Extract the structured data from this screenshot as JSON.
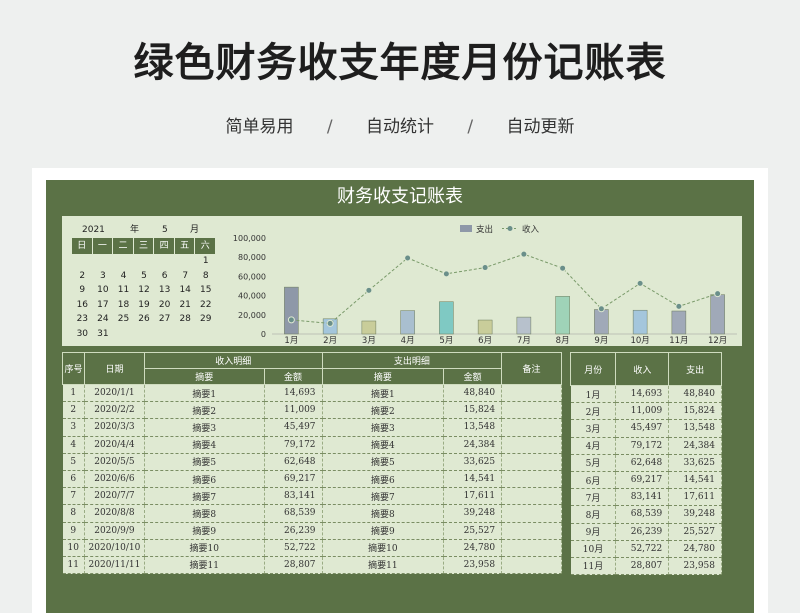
{
  "header": {
    "title": "绿色财务收支年度月份记账表",
    "features": [
      "简单易用",
      "自动统计",
      "自动更新"
    ],
    "separator": "/"
  },
  "sheet": {
    "title": "财务收支记账表"
  },
  "calendar": {
    "year": "2021",
    "year_label": "年",
    "month": "5",
    "month_label": "月",
    "weekdays": [
      "日",
      "一",
      "二",
      "三",
      "四",
      "五",
      "六"
    ],
    "weeks": [
      [
        "",
        "",
        "",
        "",
        "",
        "",
        "1"
      ],
      [
        "2",
        "3",
        "4",
        "5",
        "6",
        "7",
        "8"
      ],
      [
        "9",
        "10",
        "11",
        "12",
        "13",
        "14",
        "15"
      ],
      [
        "16",
        "17",
        "18",
        "19",
        "20",
        "21",
        "22"
      ],
      [
        "23",
        "24",
        "25",
        "26",
        "27",
        "28",
        "29"
      ],
      [
        "30",
        "31",
        "",
        "",
        "",
        "",
        ""
      ]
    ]
  },
  "chart_data": {
    "type": "bar",
    "categories": [
      "1月",
      "2月",
      "3月",
      "4月",
      "5月",
      "6月",
      "7月",
      "8月",
      "9月",
      "10月",
      "11月",
      "12月"
    ],
    "y_ticks": [
      "0",
      "20,000",
      "40,000",
      "60,000",
      "80,000",
      "100,000"
    ],
    "ylim": [
      0,
      100000
    ],
    "legend_position": "top-center",
    "series": [
      {
        "name": "支出",
        "type": "bar",
        "values": [
          48840,
          15824,
          13548,
          24384,
          33625,
          14541,
          17611,
          39248,
          25527,
          24780,
          23958,
          41000
        ]
      },
      {
        "name": "收入",
        "type": "line",
        "values": [
          14693,
          11009,
          45497,
          79172,
          62648,
          69217,
          83141,
          68539,
          26239,
          52722,
          28807,
          42000
        ]
      }
    ],
    "bar_colors": [
      "#8e98a8",
      "#a4c6dc",
      "#c9cd9a",
      "#a9bfcf",
      "#7fc9c3",
      "#c9cd9a",
      "#b7c1cc",
      "#9fd3b8",
      "#a0a9b8",
      "#a4c6dc",
      "#a0a9b8",
      "#a0a9b8"
    ],
    "line_color": "#7a9a6a"
  },
  "ledger": {
    "headers": {
      "index": "序号",
      "date": "日期",
      "income_group": "收入明细",
      "expense_group": "支出明细",
      "summary": "摘要",
      "amount": "金额",
      "remark": "备注"
    },
    "rows": [
      {
        "index": "1",
        "date": "2020/1/1",
        "in_summary": "摘要1",
        "in_amount": "14,693",
        "out_summary": "摘要1",
        "out_amount": "48,840",
        "remark": ""
      },
      {
        "index": "2",
        "date": "2020/2/2",
        "in_summary": "摘要2",
        "in_amount": "11,009",
        "out_summary": "摘要2",
        "out_amount": "15,824",
        "remark": ""
      },
      {
        "index": "3",
        "date": "2020/3/3",
        "in_summary": "摘要3",
        "in_amount": "45,497",
        "out_summary": "摘要3",
        "out_amount": "13,548",
        "remark": ""
      },
      {
        "index": "4",
        "date": "2020/4/4",
        "in_summary": "摘要4",
        "in_amount": "79,172",
        "out_summary": "摘要4",
        "out_amount": "24,384",
        "remark": ""
      },
      {
        "index": "5",
        "date": "2020/5/5",
        "in_summary": "摘要5",
        "in_amount": "62,648",
        "out_summary": "摘要5",
        "out_amount": "33,625",
        "remark": ""
      },
      {
        "index": "6",
        "date": "2020/6/6",
        "in_summary": "摘要6",
        "in_amount": "69,217",
        "out_summary": "摘要6",
        "out_amount": "14,541",
        "remark": ""
      },
      {
        "index": "7",
        "date": "2020/7/7",
        "in_summary": "摘要7",
        "in_amount": "83,141",
        "out_summary": "摘要7",
        "out_amount": "17,611",
        "remark": ""
      },
      {
        "index": "8",
        "date": "2020/8/8",
        "in_summary": "摘要8",
        "in_amount": "68,539",
        "out_summary": "摘要8",
        "out_amount": "39,248",
        "remark": ""
      },
      {
        "index": "9",
        "date": "2020/9/9",
        "in_summary": "摘要9",
        "in_amount": "26,239",
        "out_summary": "摘要9",
        "out_amount": "25,527",
        "remark": ""
      },
      {
        "index": "10",
        "date": "2020/10/10",
        "in_summary": "摘要10",
        "in_amount": "52,722",
        "out_summary": "摘要10",
        "out_amount": "24,780",
        "remark": ""
      },
      {
        "index": "11",
        "date": "2020/11/11",
        "in_summary": "摘要11",
        "in_amount": "28,807",
        "out_summary": "摘要11",
        "out_amount": "23,958",
        "remark": ""
      }
    ]
  },
  "monthly": {
    "headers": {
      "month": "月份",
      "income": "收入",
      "expense": "支出"
    },
    "rows": [
      {
        "month": "1月",
        "income": "14,693",
        "expense": "48,840"
      },
      {
        "month": "2月",
        "income": "11,009",
        "expense": "15,824"
      },
      {
        "month": "3月",
        "income": "45,497",
        "expense": "13,548"
      },
      {
        "month": "4月",
        "income": "79,172",
        "expense": "24,384"
      },
      {
        "month": "5月",
        "income": "62,648",
        "expense": "33,625"
      },
      {
        "month": "6月",
        "income": "69,217",
        "expense": "14,541"
      },
      {
        "month": "7月",
        "income": "83,141",
        "expense": "17,611"
      },
      {
        "month": "8月",
        "income": "68,539",
        "expense": "39,248"
      },
      {
        "month": "9月",
        "income": "26,239",
        "expense": "25,527"
      },
      {
        "month": "10月",
        "income": "52,722",
        "expense": "24,780"
      },
      {
        "month": "11月",
        "income": "28,807",
        "expense": "23,958"
      }
    ]
  }
}
